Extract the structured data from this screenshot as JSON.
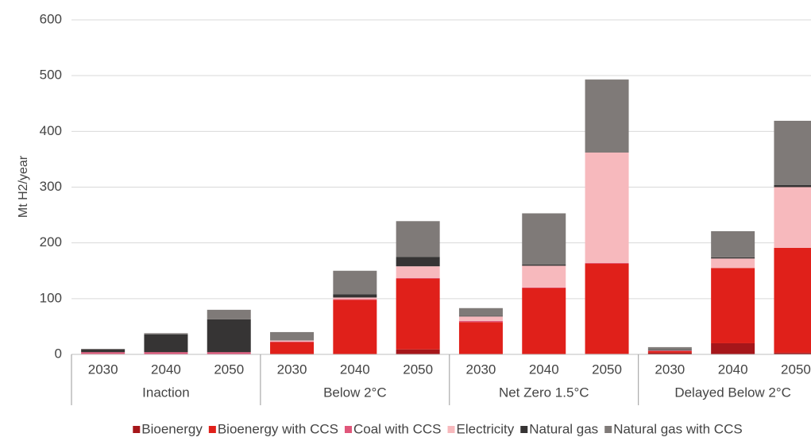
{
  "chart_data": {
    "type": "stacked_bar",
    "y_label": "Mt H2/year",
    "categories": [
      "2030",
      "2040",
      "2050",
      "2030",
      "2040",
      "2050",
      "2030",
      "2040",
      "2050",
      "2030",
      "2040",
      "2050"
    ],
    "groups": [
      "Inaction",
      "Below 2°C",
      "Net Zero 1.5°C",
      "Delayed Below 2°C"
    ],
    "series": [
      {
        "name": "Bioenergy",
        "color": "#a6161a",
        "values": [
          0,
          0,
          0,
          0,
          0,
          9,
          0,
          0,
          1,
          3,
          20,
          3
        ]
      },
      {
        "name": "Bioenergy with CCS",
        "color": "#e0201a",
        "values": [
          1,
          0,
          0,
          22,
          98,
          127,
          58,
          119,
          162,
          3,
          135,
          188
        ]
      },
      {
        "name": "Coal with CCS",
        "color": "#e0567a",
        "values": [
          3,
          4,
          4,
          1,
          1,
          1,
          2,
          1,
          1,
          1,
          0,
          0
        ]
      },
      {
        "name": "Electricity",
        "color": "#f7b9bd",
        "values": [
          0,
          0,
          0,
          2,
          3,
          21,
          8,
          39,
          198,
          0,
          17,
          109
        ]
      },
      {
        "name": "Natural gas",
        "color": "#363434",
        "values": [
          5,
          32,
          59,
          0,
          6,
          17,
          1,
          2,
          0,
          1,
          2,
          4
        ]
      },
      {
        "name": "Natural gas with CCS",
        "color": "#7f7a78",
        "values": [
          1,
          2,
          17,
          15,
          42,
          64,
          14,
          92,
          131,
          5,
          47,
          115
        ]
      }
    ],
    "ylim": [
      0,
      600
    ],
    "yticks": [
      0,
      100,
      200,
      300,
      400,
      500,
      600
    ],
    "grid": true
  }
}
